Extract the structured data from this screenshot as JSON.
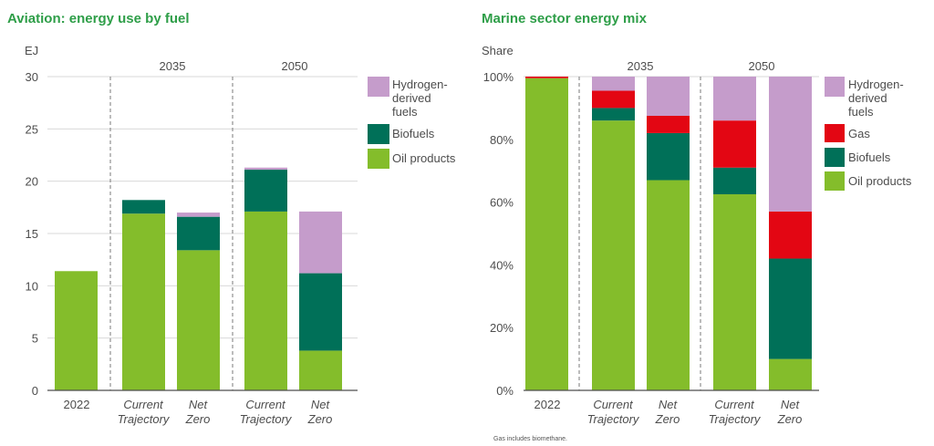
{
  "chart_data": [
    {
      "type": "bar",
      "stacked": true,
      "title": "Aviation: energy use by fuel",
      "ylabel": "EJ",
      "ylim": [
        0,
        30
      ],
      "yticks": [
        "0",
        "5",
        "10",
        "15",
        "20",
        "25",
        "30"
      ],
      "groups": [
        {
          "label": "",
          "categories": [
            "2022"
          ]
        },
        {
          "label": "2035",
          "categories": [
            "Current Trajectory",
            "Net Zero"
          ]
        },
        {
          "label": "2050",
          "categories": [
            "Current Trajectory",
            "Net Zero"
          ]
        }
      ],
      "categories": [
        "2022",
        "Current Trajectory",
        "Net Zero",
        "Current Trajectory",
        "Net Zero"
      ],
      "category_lines": [
        [
          "2022"
        ],
        [
          "Current",
          "Trajectory"
        ],
        [
          "Net",
          "Zero"
        ],
        [
          "Current",
          "Trajectory"
        ],
        [
          "Net",
          "Zero"
        ]
      ],
      "series": [
        {
          "name": "Oil products",
          "color": "#84bd2b",
          "values": [
            11.4,
            16.9,
            13.4,
            17.1,
            3.8
          ]
        },
        {
          "name": "Biofuels",
          "color": "#007058",
          "values": [
            0,
            1.3,
            3.2,
            4.0,
            7.4
          ]
        },
        {
          "name": "Hydrogen-derived fuels",
          "color": "#c59ccb",
          "values": [
            0,
            0,
            0.4,
            0.2,
            5.9
          ]
        }
      ],
      "legend_order": [
        "Hydrogen-derived fuels",
        "Biofuels",
        "Oil products"
      ],
      "legend_lines": [
        [
          "Hydrogen-",
          "derived",
          "fuels"
        ],
        [
          "Biofuels"
        ],
        [
          "Oil products"
        ]
      ],
      "legend_position": "right",
      "grid": true
    },
    {
      "type": "bar",
      "stacked": true,
      "title": "Marine sector energy mix",
      "ylabel": "Share",
      "ylim": [
        0,
        100
      ],
      "yticks": [
        "0%",
        "20%",
        "40%",
        "60%",
        "80%",
        "100%"
      ],
      "groups": [
        {
          "label": "",
          "categories": [
            "2022"
          ]
        },
        {
          "label": "2035",
          "categories": [
            "Current Trajectory",
            "Net Zero"
          ]
        },
        {
          "label": "2050",
          "categories": [
            "Current Trajectory",
            "Net Zero"
          ]
        }
      ],
      "categories": [
        "2022",
        "Current Trajectory",
        "Net Zero",
        "Current Trajectory",
        "Net Zero"
      ],
      "category_lines": [
        [
          "2022"
        ],
        [
          "Current",
          "Trajectory"
        ],
        [
          "Net",
          "Zero"
        ],
        [
          "Current",
          "Trajectory"
        ],
        [
          "Net",
          "Zero"
        ]
      ],
      "series": [
        {
          "name": "Oil products",
          "color": "#84bd2b",
          "values": [
            99.5,
            86,
            67,
            62.5,
            10
          ]
        },
        {
          "name": "Biofuels",
          "color": "#007058",
          "values": [
            0,
            4,
            15,
            8.5,
            32
          ]
        },
        {
          "name": "Gas",
          "color": "#e30613",
          "values": [
            0.5,
            5.5,
            5.5,
            15,
            15
          ]
        },
        {
          "name": "Hydrogen-derived fuels",
          "color": "#c59ccb",
          "values": [
            0,
            4.5,
            12.5,
            14,
            43
          ]
        }
      ],
      "legend_order": [
        "Hydrogen-derived fuels",
        "Gas",
        "Biofuels",
        "Oil products"
      ],
      "legend_lines": [
        [
          "Hydrogen-",
          "derived",
          "fuels"
        ],
        [
          "Gas"
        ],
        [
          "Biofuels"
        ],
        [
          "Oil products"
        ]
      ],
      "legend_position": "right",
      "grid": false,
      "footnote": "Gas includes biomethane."
    }
  ]
}
